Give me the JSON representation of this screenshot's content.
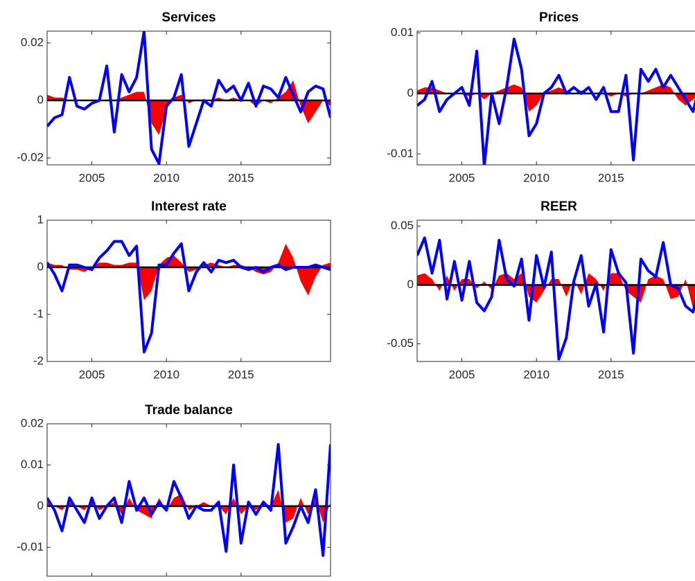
{
  "chart_data": [
    {
      "type": "line",
      "title": "Services",
      "x": [
        2002,
        2002.5,
        2003,
        2003.5,
        2004,
        2004.5,
        2005,
        2005.5,
        2006,
        2006.5,
        2007,
        2007.5,
        2008,
        2008.5,
        2009,
        2009.5,
        2010,
        2010.5,
        2011,
        2011.5,
        2012,
        2012.5,
        2013,
        2013.5,
        2014,
        2014.5,
        2015,
        2015.5,
        2016,
        2016.5,
        2017,
        2017.5,
        2018,
        2018.5,
        2019,
        2019.5,
        2020,
        2020.5,
        2021
      ],
      "xlim": [
        2002,
        2021
      ],
      "xticks": [
        2005,
        2010,
        2015
      ],
      "ylim": [
        -0.0224,
        0.0241
      ],
      "yticks": [
        -0.02,
        0,
        0.02
      ],
      "series": [
        {
          "style": "area",
          "color": "#ff0000",
          "values": [
            0.002,
            0.001,
            0.001,
            0,
            0,
            0,
            0,
            0,
            0,
            0,
            0.001,
            0.002,
            0.003,
            0.003,
            -0.008,
            -0.012,
            -0.003,
            0.001,
            0.002,
            -0.001,
            0,
            0,
            0,
            0.001,
            0,
            0.001,
            0,
            0,
            -0.002,
            0,
            -0.001,
            0.001,
            0.003,
            0.007,
            -0.002,
            -0.008,
            -0.004,
            0,
            -0.002
          ]
        },
        {
          "style": "line",
          "color": "#0000ff",
          "values": [
            -0.009,
            -0.006,
            -0.005,
            0.008,
            -0.002,
            -0.003,
            -0.001,
            0,
            0.012,
            -0.011,
            0.009,
            0.003,
            0.008,
            0.024,
            -0.017,
            -0.022,
            -0.002,
            0.001,
            0.009,
            -0.016,
            -0.008,
            0,
            -0.002,
            0.007,
            0.003,
            0.005,
            0,
            0.006,
            -0.002,
            0.005,
            0.004,
            0.001,
            0.008,
            0.002,
            -0.004,
            0.003,
            0.005,
            0.004,
            -0.006
          ]
        }
      ]
    },
    {
      "type": "line",
      "title": "Prices",
      "x": [
        2002,
        2002.5,
        2003,
        2003.5,
        2004,
        2004.5,
        2005,
        2005.5,
        2006,
        2006.5,
        2007,
        2007.5,
        2008,
        2008.5,
        2009,
        2009.5,
        2010,
        2010.5,
        2011,
        2011.5,
        2012,
        2012.5,
        2013,
        2013.5,
        2014,
        2014.5,
        2015,
        2015.5,
        2016,
        2016.5,
        2017,
        2017.5,
        2018,
        2018.5,
        2019,
        2019.5,
        2020,
        2020.5,
        2021
      ],
      "xlim": [
        2002,
        2021
      ],
      "xticks": [
        2005,
        2010,
        2015
      ],
      "ylim": [
        -0.0118,
        0.0103
      ],
      "yticks": [
        -0.01,
        0,
        0.01
      ],
      "series": [
        {
          "style": "area",
          "color": "#ff0000",
          "values": [
            0.0005,
            0.001,
            0.001,
            0.0005,
            0,
            0,
            0,
            -0.0005,
            0,
            -0.001,
            0,
            0.0005,
            0.001,
            0.0015,
            0.001,
            -0.003,
            -0.002,
            0,
            0.0005,
            0.001,
            0.0005,
            0,
            0.0005,
            0,
            0,
            0,
            -0.0005,
            0,
            -0.0005,
            0,
            0,
            0.0005,
            0.001,
            0.0015,
            0.001,
            -0.001,
            -0.002,
            -0.001,
            0
          ]
        },
        {
          "style": "line",
          "color": "#0000ff",
          "values": [
            -0.002,
            -0.001,
            0.002,
            -0.003,
            -0.001,
            0,
            0.001,
            -0.002,
            0.007,
            -0.012,
            0,
            -0.005,
            0.001,
            0.009,
            0.004,
            -0.007,
            -0.005,
            0,
            0.001,
            0.003,
            0,
            0.001,
            0,
            0.001,
            -0.001,
            0.001,
            -0.003,
            -0.003,
            0.003,
            -0.011,
            0.004,
            0.002,
            0.004,
            0.001,
            0.003,
            0.001,
            -0.001,
            -0.003,
            0.002
          ]
        }
      ]
    },
    {
      "type": "line",
      "title": "Interest rate",
      "x": [
        2002,
        2002.5,
        2003,
        2003.5,
        2004,
        2004.5,
        2005,
        2005.5,
        2006,
        2006.5,
        2007,
        2007.5,
        2008,
        2008.5,
        2009,
        2009.5,
        2010,
        2010.5,
        2011,
        2011.5,
        2012,
        2012.5,
        2013,
        2013.5,
        2014,
        2014.5,
        2015,
        2015.5,
        2016,
        2016.5,
        2017,
        2017.5,
        2018,
        2018.5,
        2019,
        2019.5,
        2020,
        2020.5,
        2021
      ],
      "xlim": [
        2002,
        2021
      ],
      "xticks": [
        2005,
        2010,
        2015
      ],
      "ylim": [
        -2,
        1
      ],
      "yticks": [
        -2,
        -1,
        0,
        1
      ],
      "series": [
        {
          "style": "area",
          "color": "#ff0000",
          "values": [
            0.1,
            0.05,
            0.05,
            -0.05,
            -0.05,
            -0.1,
            0,
            0.1,
            0.1,
            0.05,
            0.05,
            0.1,
            0.1,
            -0.7,
            -0.5,
            0.05,
            0.2,
            0.25,
            0.1,
            -0.1,
            -0.05,
            0.05,
            0.1,
            0.05,
            0,
            0.05,
            0.05,
            0,
            -0.1,
            -0.15,
            -0.1,
            0.1,
            0.5,
            0.2,
            -0.3,
            -0.6,
            -0.2,
            0.05,
            0.1
          ]
        },
        {
          "style": "line",
          "color": "#0000ff",
          "values": [
            0.1,
            -0.15,
            -0.5,
            0.05,
            0.05,
            0,
            -0.05,
            0.2,
            0.35,
            0.55,
            0.55,
            0.25,
            0.45,
            -1.8,
            -1.4,
            0.05,
            0.05,
            0.3,
            0.5,
            -0.5,
            -0.1,
            0.1,
            -0.1,
            0.15,
            0.1,
            0.15,
            0,
            -0.05,
            0,
            -0.1,
            0,
            0.05,
            -0.05,
            0,
            0,
            0,
            0.05,
            0,
            -0.05
          ]
        }
      ]
    },
    {
      "type": "line",
      "title": "REER",
      "x": [
        2002,
        2002.5,
        2003,
        2003.5,
        2004,
        2004.5,
        2005,
        2005.5,
        2006,
        2006.5,
        2007,
        2007.5,
        2008,
        2008.5,
        2009,
        2009.5,
        2010,
        2010.5,
        2011,
        2011.5,
        2012,
        2012.5,
        2013,
        2013.5,
        2014,
        2014.5,
        2015,
        2015.5,
        2016,
        2016.5,
        2017,
        2017.5,
        2018,
        2018.5,
        2019,
        2019.5,
        2020,
        2020.5,
        2021
      ],
      "xlim": [
        2002,
        2021
      ],
      "xticks": [
        2005,
        2010,
        2015
      ],
      "ylim": [
        -0.065,
        0.055
      ],
      "yticks": [
        -0.05,
        0,
        0.05
      ],
      "series": [
        {
          "style": "area",
          "color": "#ff0000",
          "values": [
            0.008,
            0.01,
            0.005,
            -0.005,
            0.008,
            -0.005,
            0.005,
            0.005,
            -0.003,
            0.003,
            -0.004,
            0.008,
            0.01,
            0.005,
            0.01,
            -0.01,
            -0.015,
            -0.005,
            0.005,
            0.005,
            -0.01,
            0.005,
            -0.008,
            0.01,
            0.005,
            -0.005,
            0.01,
            0.01,
            -0.005,
            -0.01,
            -0.015,
            0.005,
            0.008,
            0.005,
            -0.012,
            -0.01,
            0.005,
            -0.02,
            -0.01
          ]
        },
        {
          "style": "line",
          "color": "#0000ff",
          "values": [
            0.025,
            0.04,
            0.01,
            0.038,
            -0.012,
            0.02,
            -0.013,
            0.02,
            -0.015,
            -0.022,
            -0.01,
            0.038,
            0.005,
            -0.001,
            0.022,
            -0.03,
            0.025,
            -0.002,
            0.028,
            -0.063,
            -0.045,
            0.003,
            0.025,
            -0.018,
            0.001,
            -0.04,
            0.03,
            0.01,
            0.002,
            -0.058,
            0.022,
            0.012,
            0.007,
            0.036,
            0,
            -0.003,
            -0.018,
            -0.023,
            0.003
          ]
        }
      ]
    },
    {
      "type": "line",
      "title": "Trade balance",
      "x": [
        2002,
        2002.5,
        2003,
        2003.5,
        2004,
        2004.5,
        2005,
        2005.5,
        2006,
        2006.5,
        2007,
        2007.5,
        2008,
        2008.5,
        2009,
        2009.5,
        2010,
        2010.5,
        2011,
        2011.5,
        2012,
        2012.5,
        2013,
        2013.5,
        2014,
        2014.5,
        2015,
        2015.5,
        2016,
        2016.5,
        2017,
        2017.5,
        2018,
        2018.5,
        2019,
        2019.5,
        2020,
        2020.5,
        2021
      ],
      "xlim": [
        2002,
        2021
      ],
      "xticks": [
        2005,
        2010,
        2015
      ],
      "ylim": [
        -0.017,
        0.02
      ],
      "yticks": [
        -0.01,
        0,
        0.01,
        0.02
      ],
      "series": [
        {
          "style": "area",
          "color": "#ff0000",
          "values": [
            0.001,
            0,
            -0.001,
            0.001,
            0,
            -0.001,
            0.001,
            -0.001,
            0,
            0.001,
            -0.002,
            0.002,
            -0.001,
            -0.002,
            -0.003,
            0.002,
            -0.001,
            0.002,
            0.003,
            -0.001,
            0,
            0.001,
            0,
            0,
            -0.002,
            0.002,
            -0.002,
            0,
            -0.001,
            0.001,
            0,
            0.004,
            -0.004,
            -0.003,
            0.002,
            -0.002,
            0.002,
            -0.004,
            0.001
          ]
        },
        {
          "style": "line",
          "color": "#0000ff",
          "values": [
            0.002,
            -0.001,
            -0.006,
            0.002,
            -0.001,
            -0.004,
            0.002,
            -0.003,
            0,
            0.002,
            -0.004,
            0.006,
            -0.001,
            0.002,
            -0.002,
            0.001,
            -0.001,
            0.006,
            0.002,
            -0.003,
            0,
            -0.001,
            -0.001,
            0.001,
            -0.011,
            0.01,
            -0.009,
            0.001,
            -0.002,
            0.001,
            -0.001,
            0.015,
            -0.009,
            -0.005,
            0,
            -0.004,
            0.004,
            -0.012,
            0.015
          ]
        }
      ]
    }
  ]
}
